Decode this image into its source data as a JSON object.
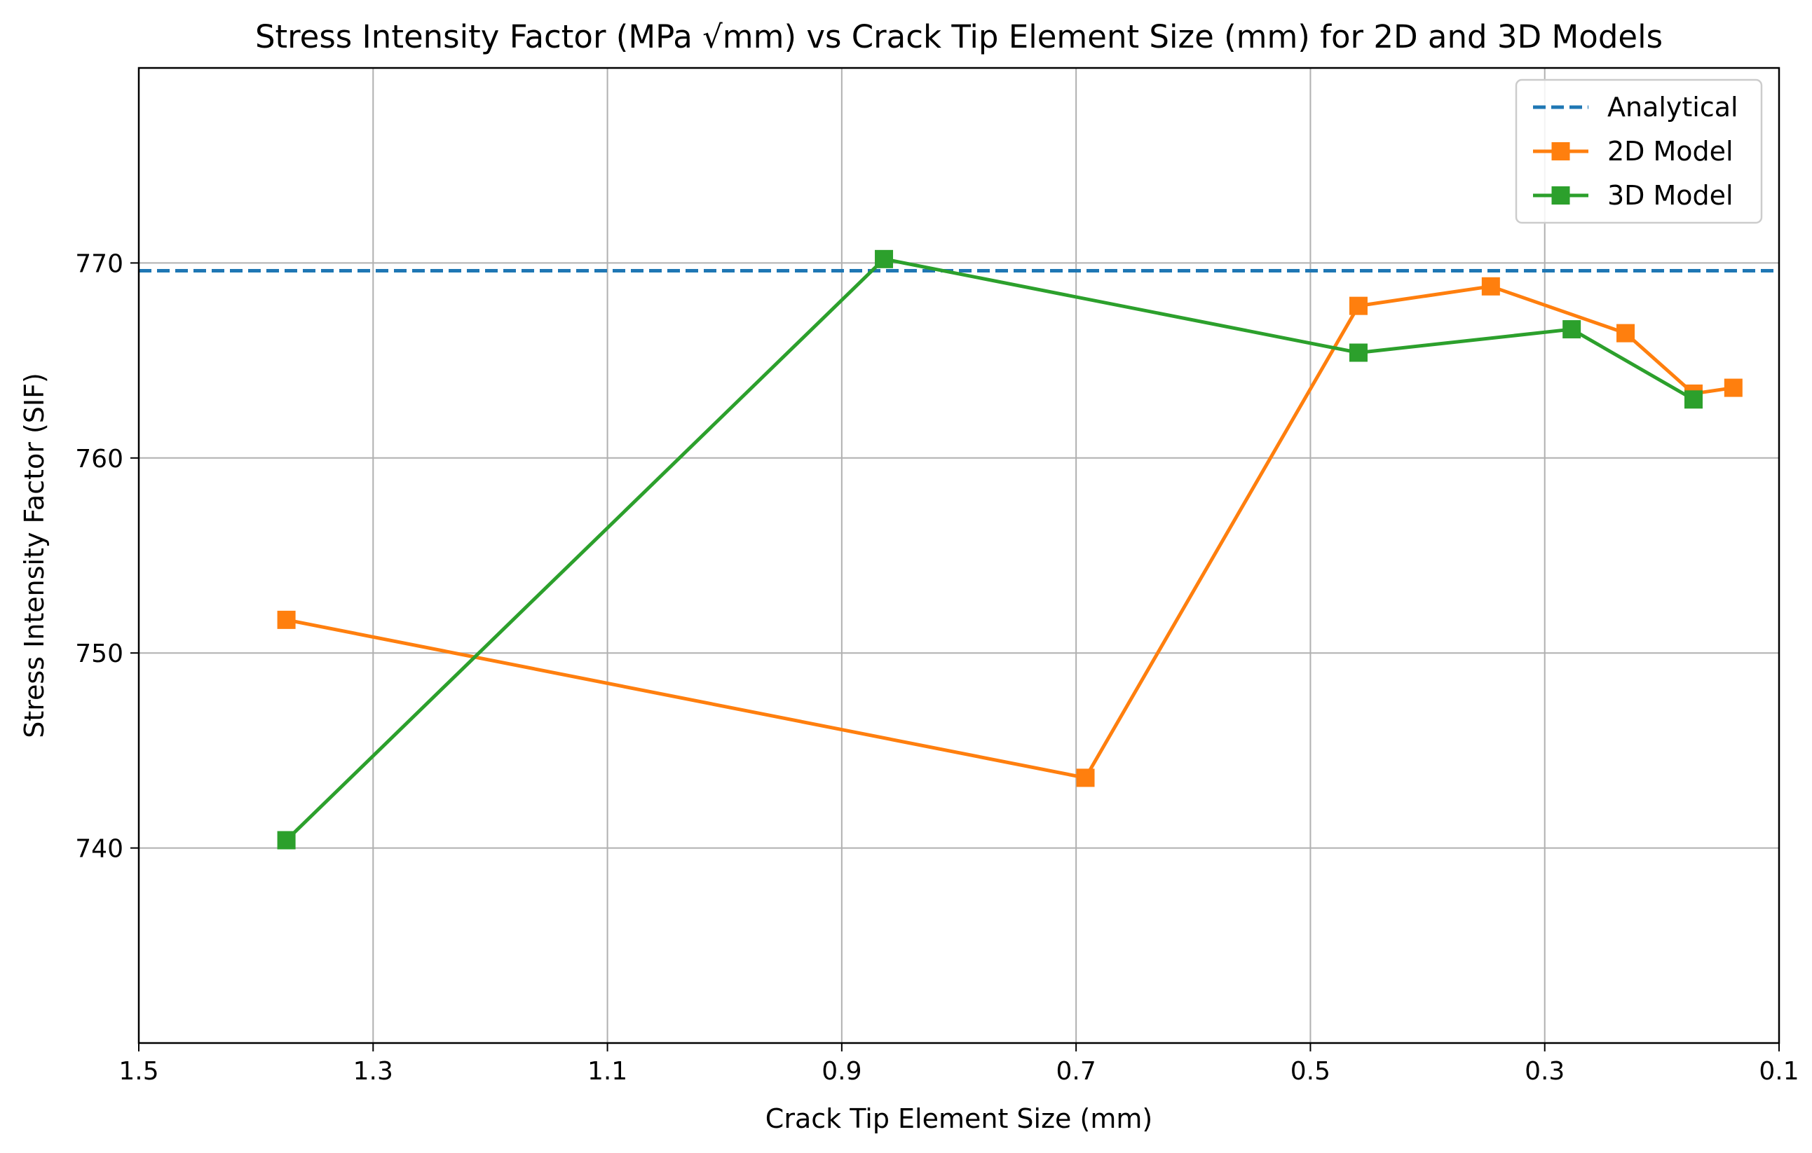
{
  "chart_data": {
    "type": "line",
    "title": "Stress Intensity Factor (MPa √mm) vs Crack Tip Element Size (mm) for 2D and 3D Models",
    "xlabel": "Crack Tip Element Size (mm)",
    "ylabel": "Stress Intensity Factor (SIF)",
    "xlim": [
      1.5,
      0.1
    ],
    "x_inverted": true,
    "ylim": [
      730,
      780
    ],
    "xticks": [
      "1.5",
      "1.3",
      "1.1",
      "0.9",
      "0.7",
      "0.5",
      "0.3",
      "0.1"
    ],
    "xtick_values": [
      1.5,
      1.3,
      1.1,
      0.9,
      0.7,
      0.5,
      0.3,
      0.1
    ],
    "yticks": [
      "740",
      "750",
      "760",
      "770"
    ],
    "ytick_values": [
      740,
      750,
      760,
      770
    ],
    "grid": true,
    "legend_position": "top-right",
    "series": [
      {
        "name": "Analytical",
        "style": "dashed",
        "marker": "none",
        "color": "#1f77b4",
        "y_constant": 769.6
      },
      {
        "name": "2D Model",
        "style": "solid",
        "marker": "square",
        "color": "#ff7f0e",
        "x": [
          1.374,
          0.692,
          0.459,
          0.346,
          0.231,
          0.173,
          0.139
        ],
        "y": [
          751.7,
          743.6,
          767.8,
          768.8,
          766.4,
          763.3,
          763.6
        ]
      },
      {
        "name": "3D Model",
        "style": "solid",
        "marker": "square",
        "color": "#2ca02c",
        "x": [
          1.374,
          0.864,
          0.459,
          0.277,
          0.173
        ],
        "y": [
          740.4,
          770.2,
          765.4,
          766.6,
          763.0
        ]
      }
    ]
  }
}
